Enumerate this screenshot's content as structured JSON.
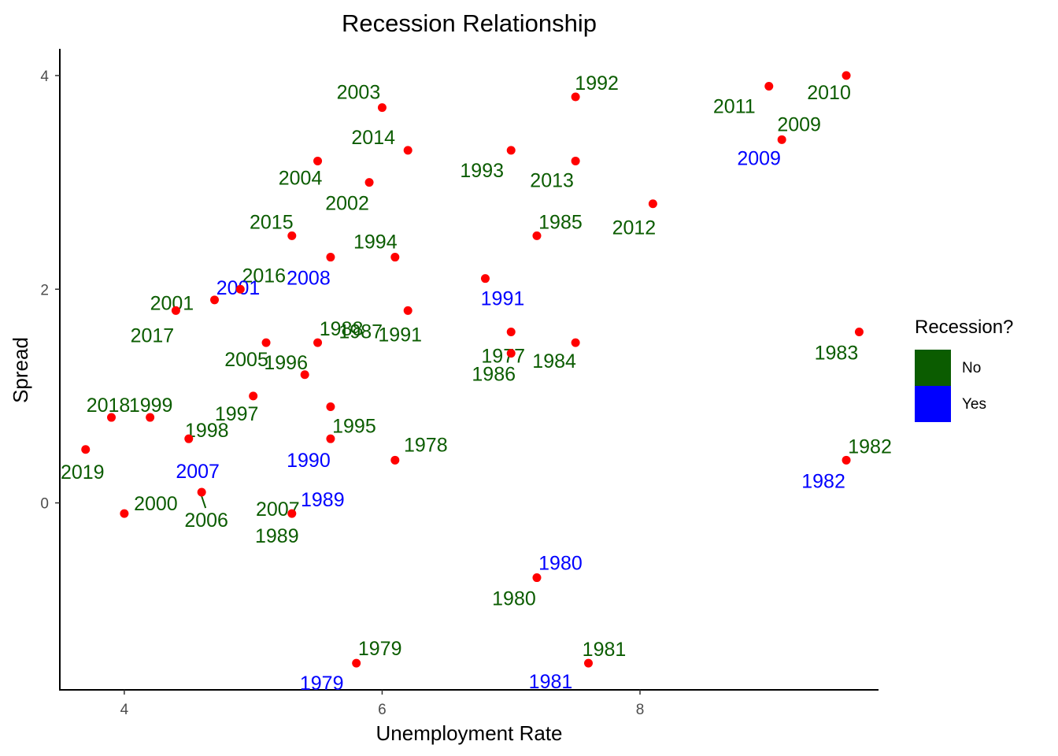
{
  "chart_data": {
    "type": "scatter",
    "title": "Recession Relationship",
    "xlabel": "Unemployment Rate",
    "ylabel": "Spread",
    "xlim": [
      3.5,
      9.85
    ],
    "ylim": [
      -1.75,
      4.25
    ],
    "x_ticks": [
      4,
      6,
      8
    ],
    "y_ticks": [
      0,
      2,
      4
    ],
    "grid": false,
    "point_color": "#ff0000",
    "legend": {
      "title": "Recession?",
      "position": "right",
      "entries": [
        {
          "label": "No",
          "color": "#0b5c00"
        },
        {
          "label": "Yes",
          "color": "#0000ff"
        }
      ]
    },
    "points": [
      {
        "x": 5.5,
        "y": 3.2
      },
      {
        "x": 5.9,
        "y": 3.0
      },
      {
        "x": 6.0,
        "y": 3.7
      },
      {
        "x": 6.2,
        "y": 3.3
      },
      {
        "x": 7.0,
        "y": 3.3
      },
      {
        "x": 7.5,
        "y": 3.8
      },
      {
        "x": 7.5,
        "y": 3.2
      },
      {
        "x": 9.0,
        "y": 3.9
      },
      {
        "x": 9.6,
        "y": 4.0
      },
      {
        "x": 9.1,
        "y": 3.4
      },
      {
        "x": 8.1,
        "y": 2.8
      },
      {
        "x": 7.2,
        "y": 2.5
      },
      {
        "x": 5.3,
        "y": 2.5
      },
      {
        "x": 5.6,
        "y": 2.3
      },
      {
        "x": 6.1,
        "y": 2.3
      },
      {
        "x": 6.8,
        "y": 2.1
      },
      {
        "x": 4.9,
        "y": 2.0
      },
      {
        "x": 4.4,
        "y": 1.8
      },
      {
        "x": 4.7,
        "y": 1.9
      },
      {
        "x": 6.2,
        "y": 1.8
      },
      {
        "x": 7.0,
        "y": 1.6
      },
      {
        "x": 7.0,
        "y": 1.4
      },
      {
        "x": 7.5,
        "y": 1.5
      },
      {
        "x": 9.7,
        "y": 1.6
      },
      {
        "x": 5.1,
        "y": 1.5
      },
      {
        "x": 5.5,
        "y": 1.5
      },
      {
        "x": 5.4,
        "y": 1.2
      },
      {
        "x": 5.0,
        "y": 1.0
      },
      {
        "x": 5.6,
        "y": 0.9
      },
      {
        "x": 3.9,
        "y": 0.8
      },
      {
        "x": 4.2,
        "y": 0.8
      },
      {
        "x": 4.5,
        "y": 0.6
      },
      {
        "x": 5.6,
        "y": 0.6
      },
      {
        "x": 6.1,
        "y": 0.4
      },
      {
        "x": 3.7,
        "y": 0.5
      },
      {
        "x": 4.6,
        "y": 0.1
      },
      {
        "x": 4.0,
        "y": -0.1
      },
      {
        "x": 5.3,
        "y": -0.1
      },
      {
        "x": 9.6,
        "y": 0.4
      },
      {
        "x": 7.2,
        "y": -0.7
      },
      {
        "x": 5.8,
        "y": -1.5
      },
      {
        "x": 7.6,
        "y": -1.5
      }
    ],
    "labels": [
      {
        "text": "2003",
        "x": 6.0,
        "y": 3.7,
        "recession": "No"
      },
      {
        "text": "1992",
        "x": 7.5,
        "y": 3.8,
        "recession": "No"
      },
      {
        "text": "2011",
        "x": 9.0,
        "y": 3.9,
        "recession": "No"
      },
      {
        "text": "2010",
        "x": 9.6,
        "y": 4.0,
        "recession": "No"
      },
      {
        "text": "2009",
        "x": 9.1,
        "y": 3.4,
        "recession": "No"
      },
      {
        "text": "2009",
        "x": 9.1,
        "y": 3.4,
        "recession": "Yes"
      },
      {
        "text": "2004",
        "x": 5.5,
        "y": 3.2,
        "recession": "No"
      },
      {
        "text": "2014",
        "x": 6.2,
        "y": 3.3,
        "recession": "No"
      },
      {
        "text": "1993",
        "x": 7.0,
        "y": 3.3,
        "recession": "No"
      },
      {
        "text": "2013",
        "x": 7.5,
        "y": 3.2,
        "recession": "No"
      },
      {
        "text": "2002",
        "x": 5.9,
        "y": 3.0,
        "recession": "No"
      },
      {
        "text": "2012",
        "x": 8.1,
        "y": 2.8,
        "recession": "No"
      },
      {
        "text": "1985",
        "x": 7.2,
        "y": 2.5,
        "recession": "No"
      },
      {
        "text": "2015",
        "x": 5.3,
        "y": 2.5,
        "recession": "No"
      },
      {
        "text": "1994",
        "x": 6.1,
        "y": 2.3,
        "recession": "No"
      },
      {
        "text": "2008",
        "x": 5.6,
        "y": 2.3,
        "recession": "Yes"
      },
      {
        "text": "1991",
        "x": 6.8,
        "y": 2.1,
        "recession": "Yes"
      },
      {
        "text": "2016",
        "x": 4.9,
        "y": 2.0,
        "recession": "No"
      },
      {
        "text": "2001",
        "x": 4.4,
        "y": 1.8,
        "recession": "No"
      },
      {
        "text": "1991",
        "x": 6.2,
        "y": 1.8,
        "recession": "No"
      },
      {
        "text": "2017",
        "x": 4.4,
        "y": 1.8,
        "recession": "No"
      },
      {
        "text": "2001",
        "x": 4.7,
        "y": 1.9,
        "recession": "Yes"
      },
      {
        "text": "1987",
        "x": 6.2,
        "y": 1.8,
        "recession": "No"
      },
      {
        "text": "1977",
        "x": 7.0,
        "y": 1.6,
        "recession": "No"
      },
      {
        "text": "1988",
        "x": 5.5,
        "y": 1.5,
        "recession": "No"
      },
      {
        "text": "2005",
        "x": 5.1,
        "y": 1.5,
        "recession": "No"
      },
      {
        "text": "1983",
        "x": 9.7,
        "y": 1.6,
        "recession": "No"
      },
      {
        "text": "1996",
        "x": 5.4,
        "y": 1.2,
        "recession": "No"
      },
      {
        "text": "1986",
        "x": 7.0,
        "y": 1.4,
        "recession": "No"
      },
      {
        "text": "1984",
        "x": 7.5,
        "y": 1.5,
        "recession": "No"
      },
      {
        "text": "2018",
        "x": 3.9,
        "y": 0.8,
        "recession": "No"
      },
      {
        "text": "1999",
        "x": 4.2,
        "y": 0.8,
        "recession": "No"
      },
      {
        "text": "1997",
        "x": 5.0,
        "y": 1.0,
        "recession": "No"
      },
      {
        "text": "1995",
        "x": 5.6,
        "y": 0.9,
        "recession": "No"
      },
      {
        "text": "1998",
        "x": 4.5,
        "y": 0.6,
        "recession": "No"
      },
      {
        "text": "1978",
        "x": 6.1,
        "y": 0.4,
        "recession": "No"
      },
      {
        "text": "1990",
        "x": 5.6,
        "y": 0.6,
        "recession": "Yes"
      },
      {
        "text": "2019",
        "x": 3.7,
        "y": 0.5,
        "recession": "No"
      },
      {
        "text": "2007",
        "x": 4.6,
        "y": 0.1,
        "recession": "Yes"
      },
      {
        "text": "1982",
        "x": 9.6,
        "y": 0.4,
        "recession": "No"
      },
      {
        "text": "1982",
        "x": 9.6,
        "y": 0.4,
        "recession": "Yes"
      },
      {
        "text": "2000",
        "x": 4.0,
        "y": -0.1,
        "recession": "No"
      },
      {
        "text": "2007",
        "x": 5.3,
        "y": -0.1,
        "recession": "No"
      },
      {
        "text": "1989",
        "x": 5.3,
        "y": -0.1,
        "recession": "Yes"
      },
      {
        "text": "2006",
        "x": 4.6,
        "y": 0.1,
        "recession": "No"
      },
      {
        "text": "1989",
        "x": 5.3,
        "y": -0.1,
        "recession": "No"
      },
      {
        "text": "1980",
        "x": 7.2,
        "y": -0.7,
        "recession": "Yes"
      },
      {
        "text": "1980",
        "x": 7.2,
        "y": -0.7,
        "recession": "No"
      },
      {
        "text": "1979",
        "x": 5.8,
        "y": -1.5,
        "recession": "No"
      },
      {
        "text": "1981",
        "x": 7.6,
        "y": -1.5,
        "recession": "No"
      },
      {
        "text": "1979",
        "x": 5.8,
        "y": -1.5,
        "recession": "Yes"
      },
      {
        "text": "1981",
        "x": 7.6,
        "y": -1.5,
        "recession": "Yes"
      }
    ]
  }
}
